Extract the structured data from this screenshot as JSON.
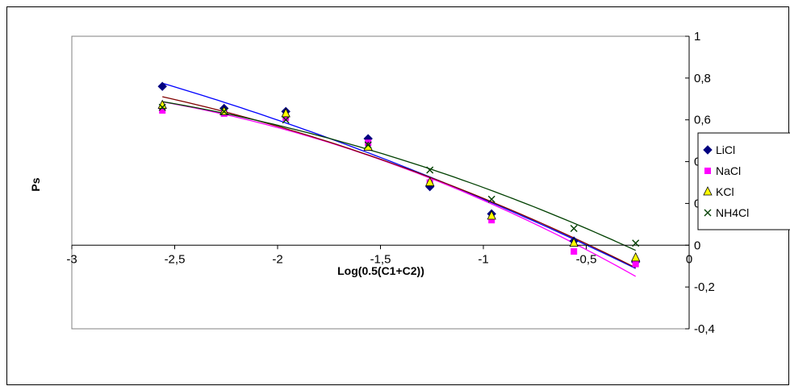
{
  "chart_data": {
    "type": "scatter",
    "title": "",
    "xlabel": "Log(0.5(C1+C2))",
    "ylabel": "Ps",
    "xlim": [
      -3,
      0
    ],
    "ylim": [
      -0.4,
      1
    ],
    "x_ticks": [
      "-3",
      "-2,5",
      "-2",
      "-1,5",
      "-1",
      "-0,5",
      "0"
    ],
    "y_ticks": [
      "-0,4",
      "-0,2",
      "0",
      "0,2",
      "0,4",
      "0,6",
      "0,8",
      "1"
    ],
    "grid": false,
    "legend_position": "right",
    "series": [
      {
        "name": "LiCl",
        "color": "#000080",
        "marker": "diamond",
        "trend_color": "#0000ff",
        "x": [
          -2.56,
          -2.26,
          -1.96,
          -1.56,
          -1.26,
          -0.96,
          -0.56,
          -0.26
        ],
        "y": [
          0.76,
          0.655,
          0.64,
          0.51,
          0.28,
          0.15,
          0.02,
          -0.08
        ]
      },
      {
        "name": "NaCl",
        "color": "#ff00ff",
        "marker": "square",
        "trend_color": "#ff00ff",
        "x": [
          -2.56,
          -2.26,
          -1.96,
          -1.56,
          -1.26,
          -0.96,
          -0.56,
          -0.26
        ],
        "y": [
          0.645,
          0.63,
          0.61,
          0.49,
          0.3,
          0.12,
          -0.03,
          -0.09
        ]
      },
      {
        "name": "KCl",
        "color": "#ffff00",
        "marker": "triangle",
        "trend_color": "#800000",
        "x": [
          -2.56,
          -2.26,
          -1.96,
          -1.56,
          -1.26,
          -0.96,
          -0.56,
          -0.26
        ],
        "y": [
          0.67,
          0.64,
          0.63,
          0.47,
          0.3,
          0.14,
          0.01,
          -0.06
        ]
      },
      {
        "name": "NH4Cl",
        "color": "#004000",
        "marker": "x",
        "trend_color": "#004000",
        "x": [
          -2.56,
          -2.26,
          -1.96,
          -1.56,
          -1.26,
          -0.96,
          -0.56,
          -0.26
        ],
        "y": [
          0.66,
          0.64,
          0.6,
          0.48,
          0.36,
          0.22,
          0.08,
          0.01
        ]
      }
    ]
  }
}
